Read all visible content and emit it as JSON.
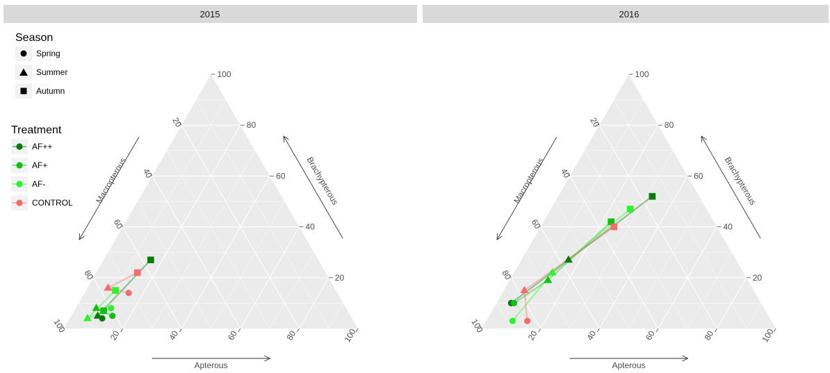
{
  "colors": {
    "AF++": "#0a7a0a",
    "AF+": "#12c012",
    "AF-": "#2af52a",
    "CONTROL": "#f26d6d",
    "panel_bg": "#ebebeb",
    "strip_bg": "#d9d9d9",
    "grid": "#ffffff"
  },
  "legend": {
    "season_title": "Season",
    "season_items": [
      {
        "label": "Spring",
        "shape": "circle"
      },
      {
        "label": "Summer",
        "shape": "triangle"
      },
      {
        "label": "Autumn",
        "shape": "square"
      }
    ],
    "treatment_title": "Treatment",
    "treatment_items": [
      {
        "label": "AF++",
        "key": "AF++"
      },
      {
        "label": "AF+",
        "key": "AF+"
      },
      {
        "label": "AF-",
        "key": "AF-"
      },
      {
        "label": "CONTROL",
        "key": "CONTROL"
      }
    ]
  },
  "chart_data": {
    "type": "scatter",
    "subtype": "ternary",
    "axes": {
      "apterous_label": "Apterous",
      "brachypterous_label": "Brachypterous",
      "macropterous_label": "Macropterous",
      "ticks": [
        20,
        40,
        60,
        80,
        100
      ],
      "range": [
        0,
        100
      ]
    },
    "panels": [
      {
        "title": "2015",
        "points": [
          {
            "treatment": "AF++",
            "season": "Spring",
            "apterous": 11,
            "brachypterous": 4,
            "macropterous": 85
          },
          {
            "treatment": "AF++",
            "season": "Summer",
            "apterous": 9,
            "brachypterous": 5,
            "macropterous": 86
          },
          {
            "treatment": "AF++",
            "season": "Autumn",
            "apterous": 16,
            "brachypterous": 27,
            "macropterous": 57
          },
          {
            "treatment": "AF+",
            "season": "Spring",
            "apterous": 14,
            "brachypterous": 5,
            "macropterous": 81
          },
          {
            "treatment": "AF+",
            "season": "Summer",
            "apterous": 7,
            "brachypterous": 8,
            "macropterous": 85
          },
          {
            "treatment": "AF+",
            "season": "Autumn",
            "apterous": 10,
            "brachypterous": 7,
            "macropterous": 83
          },
          {
            "treatment": "AF-",
            "season": "Spring",
            "apterous": 12,
            "brachypterous": 8,
            "macropterous": 80
          },
          {
            "treatment": "AF-",
            "season": "Summer",
            "apterous": 6,
            "brachypterous": 4,
            "macropterous": 90
          },
          {
            "treatment": "AF-",
            "season": "Autumn",
            "apterous": 10,
            "brachypterous": 15,
            "macropterous": 75
          },
          {
            "treatment": "CONTROL",
            "season": "Spring",
            "apterous": 15,
            "brachypterous": 14,
            "macropterous": 71
          },
          {
            "treatment": "CONTROL",
            "season": "Summer",
            "apterous": 7,
            "brachypterous": 16,
            "macropterous": 77
          },
          {
            "treatment": "CONTROL",
            "season": "Autumn",
            "apterous": 14,
            "brachypterous": 22,
            "macropterous": 64
          }
        ]
      },
      {
        "title": "2016",
        "points": [
          {
            "treatment": "AF++",
            "season": "Spring",
            "apterous": 5,
            "brachypterous": 10,
            "macropterous": 85
          },
          {
            "treatment": "AF++",
            "season": "Summer",
            "apterous": 16,
            "brachypterous": 27,
            "macropterous": 57
          },
          {
            "treatment": "AF++",
            "season": "Autumn",
            "apterous": 32,
            "brachypterous": 52,
            "macropterous": 16
          },
          {
            "treatment": "AF+",
            "season": "Spring",
            "apterous": 6,
            "brachypterous": 10,
            "macropterous": 84
          },
          {
            "treatment": "AF+",
            "season": "Summer",
            "apterous": 13,
            "brachypterous": 19,
            "macropterous": 68
          },
          {
            "treatment": "AF+",
            "season": "Autumn",
            "apterous": 23,
            "brachypterous": 42,
            "macropterous": 35
          },
          {
            "treatment": "AF-",
            "season": "Spring",
            "apterous": 9,
            "brachypterous": 3,
            "macropterous": 88
          },
          {
            "treatment": "AF-",
            "season": "Summer",
            "apterous": 13,
            "brachypterous": 22,
            "macropterous": 65
          },
          {
            "treatment": "AF-",
            "season": "Autumn",
            "apterous": 27,
            "brachypterous": 47,
            "macropterous": 26
          },
          {
            "treatment": "CONTROL",
            "season": "Spring",
            "apterous": 14,
            "brachypterous": 3,
            "macropterous": 83
          },
          {
            "treatment": "CONTROL",
            "season": "Summer",
            "apterous": 7,
            "brachypterous": 15,
            "macropterous": 78
          },
          {
            "treatment": "CONTROL",
            "season": "Autumn",
            "apterous": 25,
            "brachypterous": 40,
            "macropterous": 35
          }
        ]
      }
    ]
  }
}
